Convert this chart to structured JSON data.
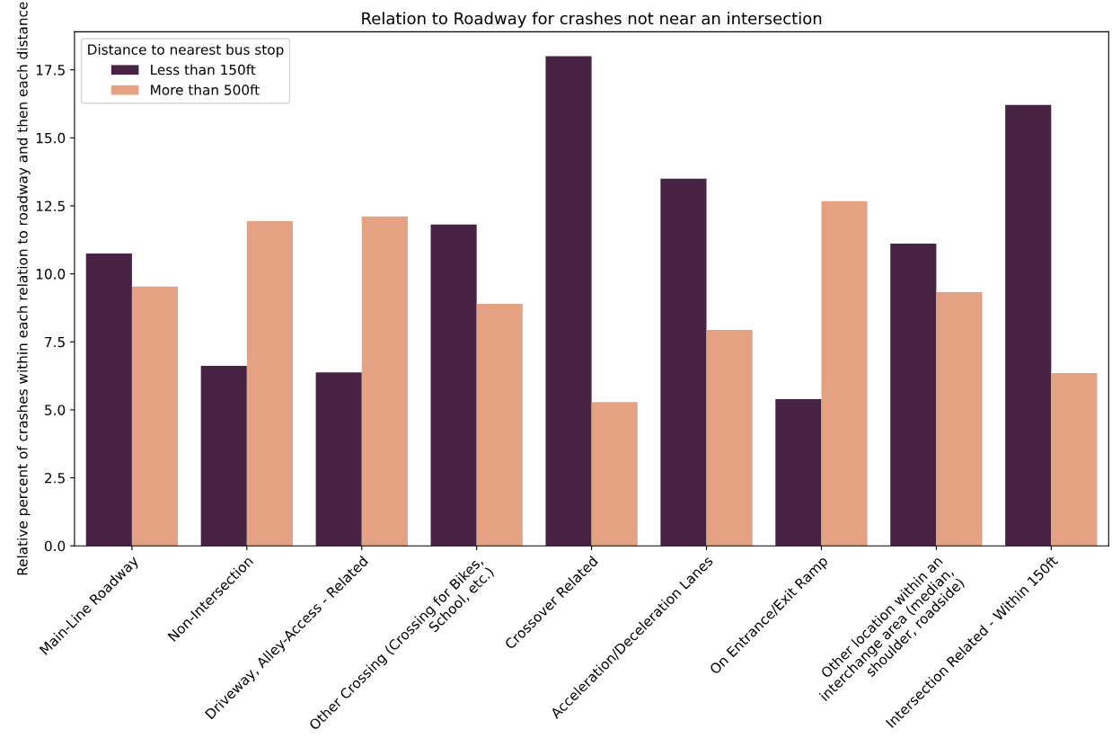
{
  "chart_data": {
    "type": "bar",
    "title": "Relation to Roadway for crashes not near an intersection",
    "ylabel": "Relative percent of crashes within each relation to roadway and then each distance",
    "legend_title": "Distance to nearest bus stop",
    "categories": [
      "Main-Line Roadway",
      "Non-Intersection",
      "Driveway, Alley-Access - Related",
      "Other Crossing (Crossing for Bikes,\nSchool, etc.)",
      "Crossover Related",
      "Acceleration/Deceleration Lanes",
      "On Entrance/Exit Ramp",
      "Other location within an\ninterchange area (median,\nshoulder, roadside)",
      "Intersection Related - Within 150ft"
    ],
    "series": [
      {
        "name": "Less than 150ft",
        "color": "#482343",
        "values": [
          10.75,
          6.62,
          6.38,
          11.81,
          18.0,
          13.5,
          5.39,
          11.11,
          16.21
        ]
      },
      {
        "name": "More than 500ft",
        "color": "#e4a282",
        "values": [
          9.53,
          11.94,
          12.11,
          8.9,
          5.29,
          7.94,
          12.67,
          9.33,
          6.35
        ]
      }
    ],
    "ylim": [
      0,
      18.9
    ],
    "yticks": [
      {
        "value": 0,
        "label": "0.0"
      },
      {
        "value": 2.5,
        "label": "2.5"
      },
      {
        "value": 5,
        "label": "5.0"
      },
      {
        "value": 7.5,
        "label": "7.5"
      },
      {
        "value": 10,
        "label": "10.0"
      },
      {
        "value": 12.5,
        "label": "12.5"
      },
      {
        "value": 15,
        "label": "15.0"
      },
      {
        "value": 17.5,
        "label": "17.5"
      }
    ],
    "grid": false,
    "legend": "top left"
  }
}
